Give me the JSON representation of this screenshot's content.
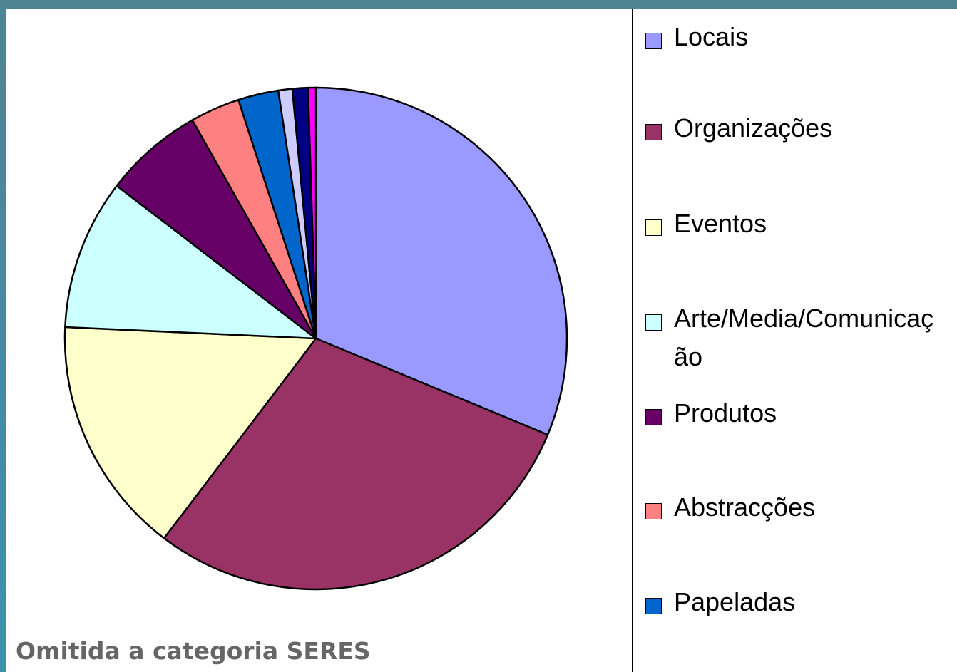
{
  "chart_data": {
    "type": "pie",
    "categories": [
      "Locais",
      "Organizações",
      "Eventos",
      "Arte/Media/Comunicação",
      "Produtos",
      "Abstracções",
      "Papeladas",
      null,
      null,
      null
    ],
    "values": [
      31.3,
      29.1,
      15.4,
      9.7,
      6.4,
      3.2,
      2.6,
      0.9,
      1.0,
      0.5
    ],
    "colors": [
      "#9999ff",
      "#993366",
      "#ffffcc",
      "#ccffff",
      "#660066",
      "#ff8080",
      "#0066cc",
      "#ccccff",
      "#000080",
      "#ff00ff"
    ],
    "legend": "right",
    "annotation": "Omitida a categoria SERES"
  }
}
